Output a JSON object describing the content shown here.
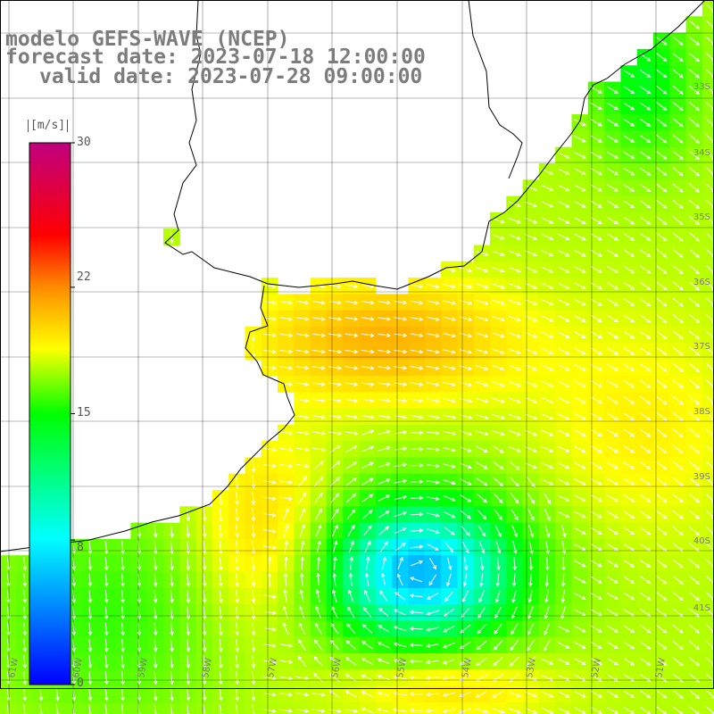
{
  "title": {
    "line1": "modelo GEFS-WAVE (NCEP)",
    "line2": "forecast date: 2023-07-18 12:00:00",
    "line3": "valid date: 2023-07-28 09:00:00"
  },
  "colorbar": {
    "unit": "[m/s]",
    "ticks": [
      "30",
      "22",
      "15",
      "8",
      "0"
    ],
    "tick_values": [
      30,
      22,
      15,
      8,
      0
    ],
    "range": [
      0,
      30
    ],
    "colors": [
      "#0000ff",
      "#00ffff",
      "#00ff00",
      "#ffff00",
      "#ff8000",
      "#ff0000",
      "#c00080"
    ]
  },
  "lat_labels": [
    "33S",
    "34S",
    "35S",
    "36S",
    "37S",
    "38S",
    "39S",
    "40S",
    "41S"
  ],
  "lon_labels": [
    "61W",
    "60W",
    "59W",
    "58W",
    "57W",
    "56W",
    "55W",
    "54W",
    "53W",
    "52W",
    "51W"
  ],
  "colors": {
    "land": "#ffffff",
    "grid": "#000000",
    "coast": "#000000",
    "label_gray": "#7c7c7c"
  }
}
